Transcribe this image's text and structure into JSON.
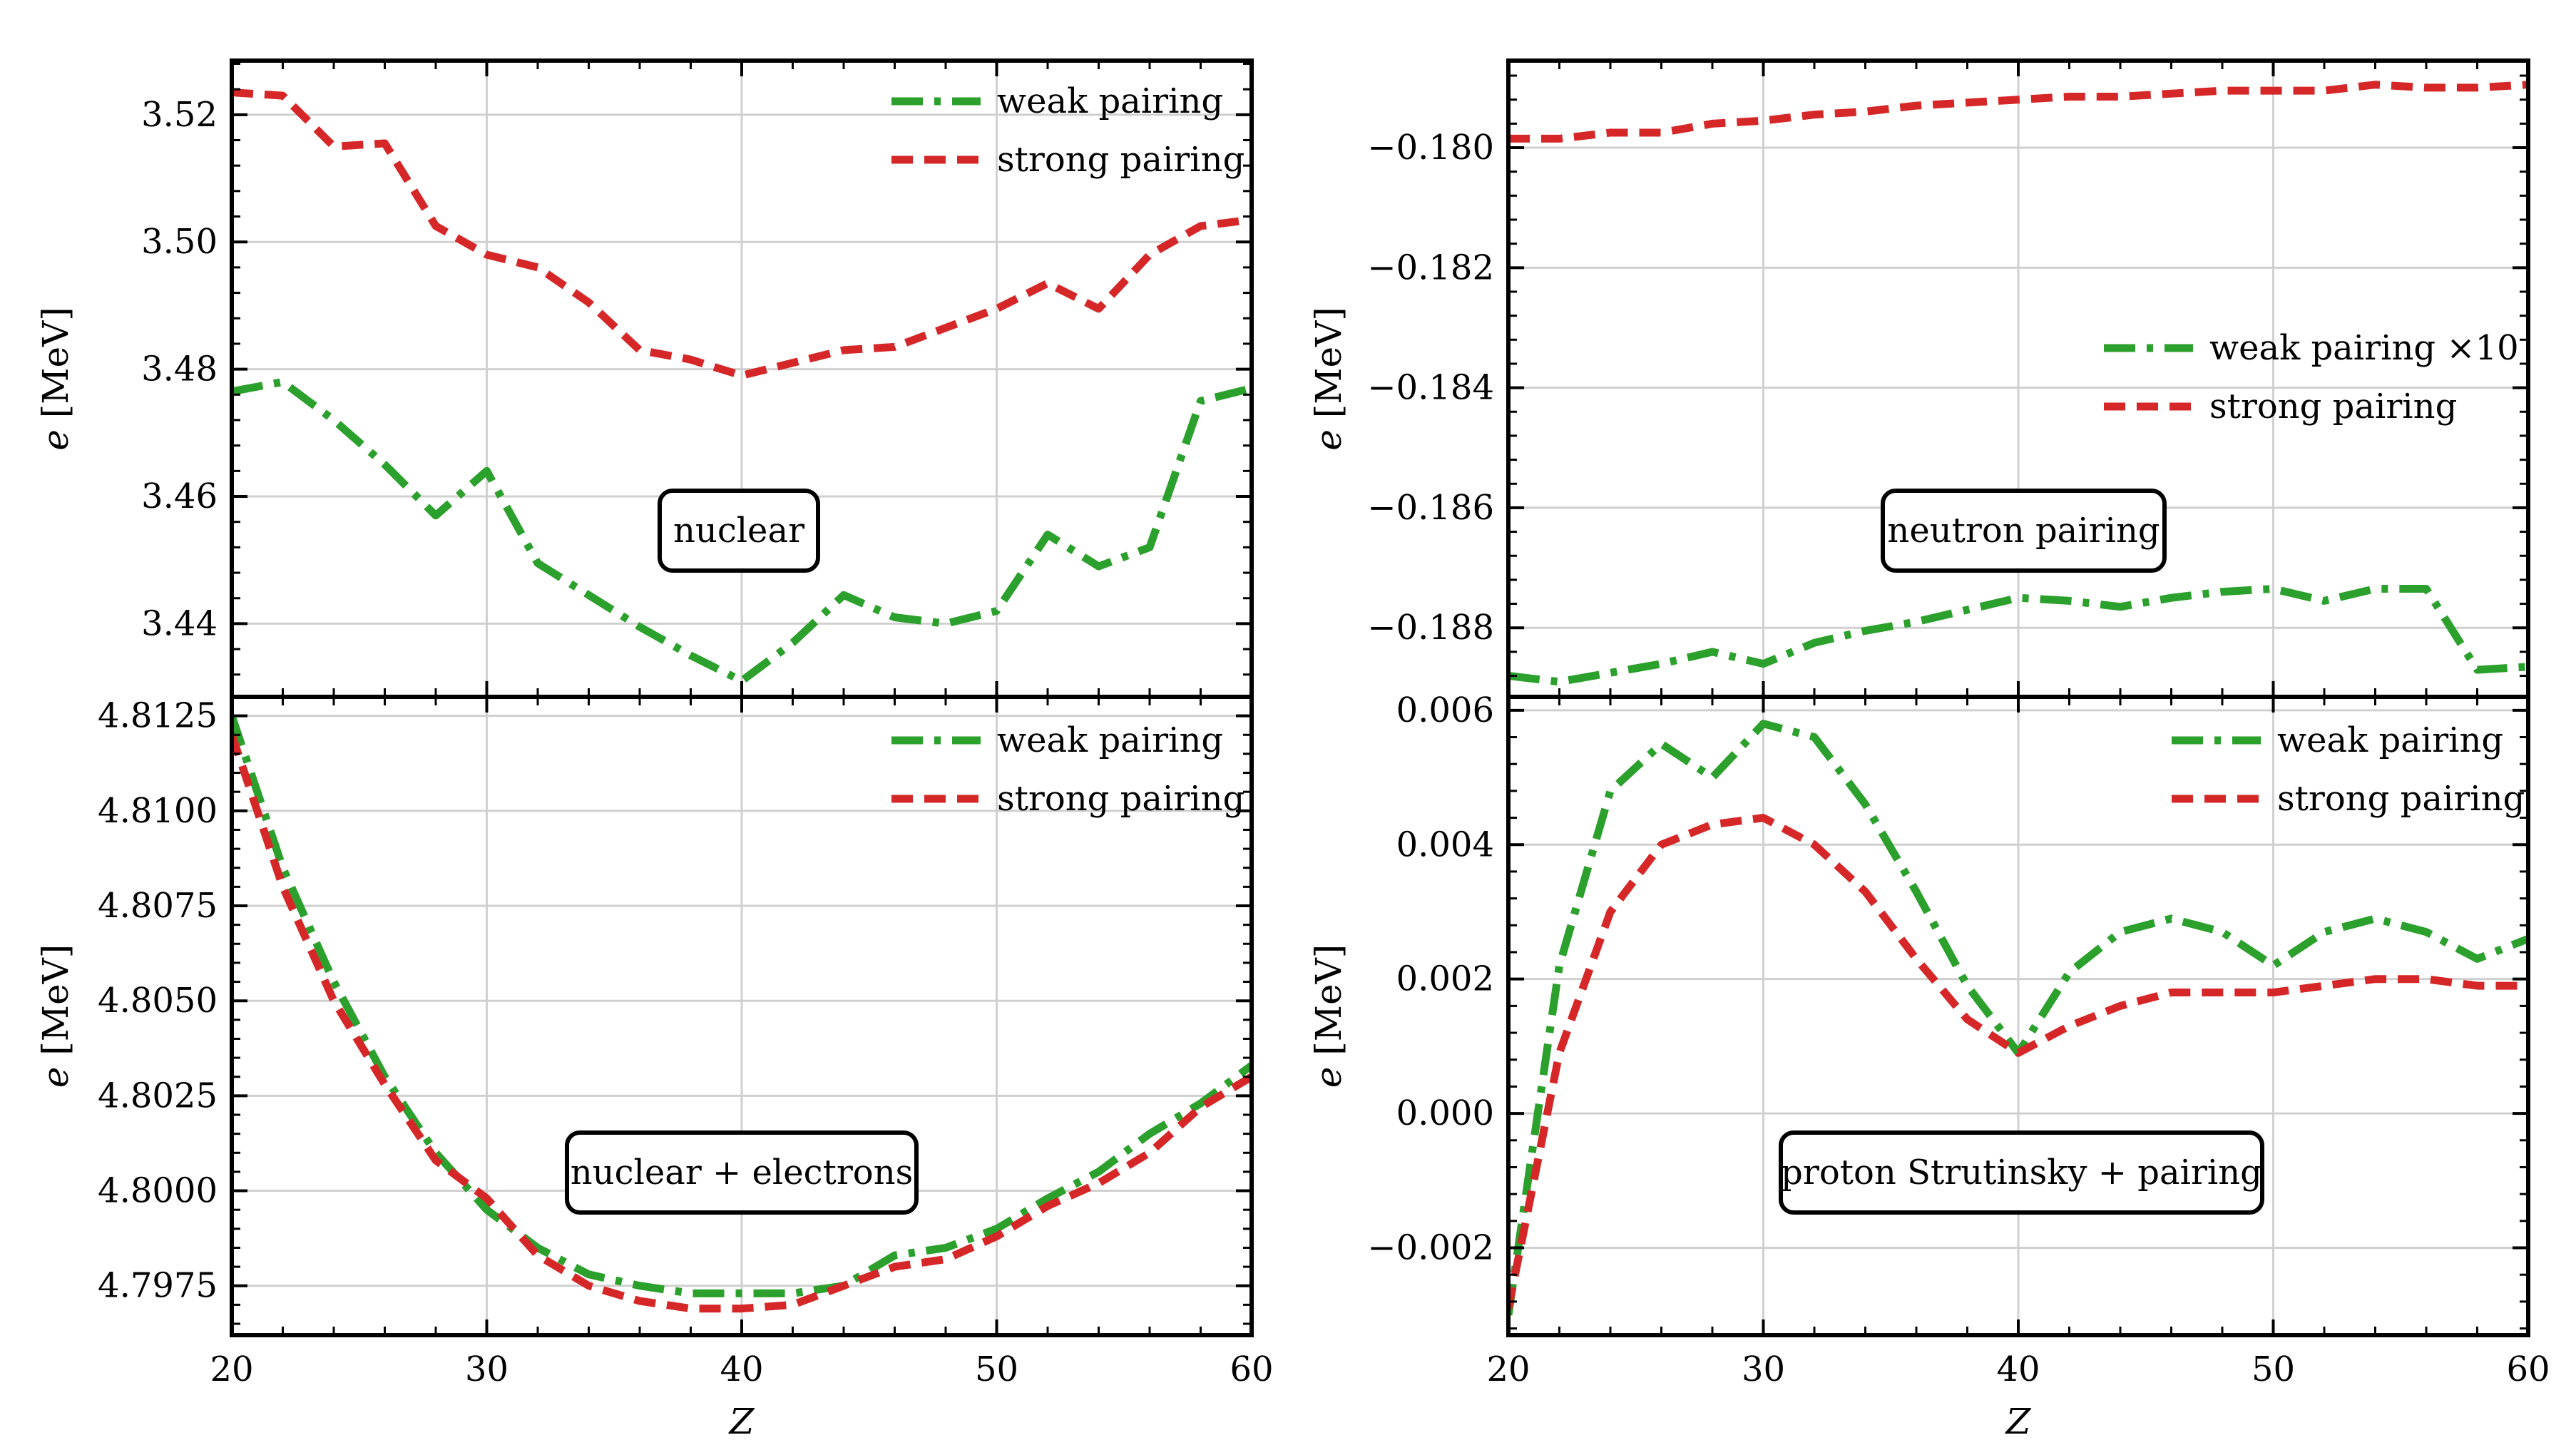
{
  "colors": {
    "weak": "#2ca02c",
    "strong": "#d62728"
  },
  "x_axis_label": "Z",
  "y_axis_label_italic": "e",
  "y_axis_label_unit": "[MeV]",
  "chart_data": [
    {
      "id": "nuclear",
      "type": "line",
      "annotation": "nuclear",
      "ylabel": "e [MeV]",
      "xlabel": "",
      "xlim": [
        20,
        60
      ],
      "ylim": [
        3.4285,
        3.5285
      ],
      "xticks": [
        20,
        30,
        40,
        50,
        60
      ],
      "show_xtick_labels": false,
      "yticks": [
        3.44,
        3.46,
        3.48,
        3.5,
        3.52
      ],
      "ytick_labels": [
        "3.44",
        "3.46",
        "3.48",
        "3.50",
        "3.52"
      ],
      "legend_position": "upper right",
      "x": [
        20,
        22,
        24,
        26,
        28,
        30,
        32,
        34,
        36,
        38,
        40,
        42,
        44,
        46,
        48,
        50,
        52,
        54,
        56,
        58,
        60
      ],
      "series": [
        {
          "name": "weak pairing",
          "style": "dashdot",
          "color_key": "weak",
          "values": [
            3.4765,
            3.478,
            3.472,
            3.465,
            3.457,
            3.464,
            3.4495,
            3.4445,
            3.4395,
            3.435,
            3.431,
            3.437,
            3.4445,
            3.441,
            3.44,
            3.442,
            3.454,
            3.449,
            3.452,
            3.475,
            3.477
          ]
        },
        {
          "name": "strong pairing",
          "style": "dashed",
          "color_key": "strong",
          "values": [
            3.5235,
            3.523,
            3.515,
            3.5155,
            3.5025,
            3.498,
            3.496,
            3.4905,
            3.483,
            3.4815,
            3.479,
            3.481,
            3.483,
            3.4835,
            3.4865,
            3.4895,
            3.4935,
            3.4895,
            3.498,
            3.5025,
            3.5035
          ]
        }
      ]
    },
    {
      "id": "neutron",
      "type": "line",
      "annotation": "neutron pairing",
      "ylabel": "e [MeV]",
      "xlabel": "",
      "xlim": [
        20,
        60
      ],
      "ylim": [
        -0.18915,
        -0.17855
      ],
      "xticks": [
        20,
        30,
        40,
        50,
        60
      ],
      "show_xtick_labels": false,
      "yticks": [
        -0.188,
        -0.186,
        -0.184,
        -0.182,
        -0.18
      ],
      "ytick_labels": [
        "−0.188",
        "−0.186",
        "−0.184",
        "−0.182",
        "−0.180"
      ],
      "legend_position": "center right",
      "x": [
        20,
        22,
        24,
        26,
        28,
        30,
        32,
        34,
        36,
        38,
        40,
        42,
        44,
        46,
        48,
        50,
        52,
        54,
        56,
        58,
        60
      ],
      "series": [
        {
          "name": "weak pairing ×10",
          "style": "dashdot",
          "color_key": "weak",
          "values": [
            -0.1888,
            -0.1889,
            -0.18875,
            -0.1886,
            -0.1884,
            -0.1886,
            -0.18825,
            -0.18805,
            -0.1879,
            -0.1877,
            -0.1875,
            -0.18755,
            -0.18765,
            -0.1875,
            -0.1874,
            -0.18735,
            -0.18755,
            -0.18735,
            -0.18735,
            -0.1887,
            -0.18865
          ]
        },
        {
          "name": "strong pairing",
          "style": "dashed",
          "color_key": "strong",
          "values": [
            -0.17985,
            -0.17985,
            -0.17975,
            -0.17975,
            -0.1796,
            -0.17955,
            -0.17945,
            -0.1794,
            -0.1793,
            -0.17925,
            -0.1792,
            -0.17915,
            -0.17915,
            -0.1791,
            -0.17905,
            -0.17905,
            -0.17905,
            -0.17895,
            -0.179,
            -0.179,
            -0.17895
          ]
        }
      ]
    },
    {
      "id": "nuclear_electrons",
      "type": "line",
      "annotation": "nuclear + electrons",
      "ylabel": "e [MeV]",
      "xlabel": "Z",
      "xlim": [
        20,
        60
      ],
      "ylim": [
        4.7962,
        4.813
      ],
      "xticks": [
        20,
        30,
        40,
        50,
        60
      ],
      "show_xtick_labels": true,
      "xtick_labels": [
        "20",
        "30",
        "40",
        "50",
        "60"
      ],
      "yticks": [
        4.7975,
        4.8,
        4.8025,
        4.805,
        4.8075,
        4.81,
        4.8125
      ],
      "ytick_labels": [
        "4.7975",
        "4.8000",
        "4.8025",
        "4.8050",
        "4.8075",
        "4.8100",
        "4.8125"
      ],
      "legend_position": "upper right",
      "x": [
        20,
        22,
        24,
        26,
        28,
        30,
        32,
        34,
        36,
        38,
        40,
        42,
        44,
        46,
        48,
        50,
        52,
        54,
        56,
        58,
        60
      ],
      "series": [
        {
          "name": "weak pairing",
          "style": "dashdot",
          "color_key": "weak",
          "values": [
            4.8125,
            4.8085,
            4.8055,
            4.803,
            4.801,
            4.7995,
            4.7985,
            4.7978,
            4.7975,
            4.7973,
            4.7973,
            4.7973,
            4.7975,
            4.7983,
            4.7985,
            4.799,
            4.7998,
            4.8005,
            4.8015,
            4.8023,
            4.8033
          ]
        },
        {
          "name": "strong pairing",
          "style": "dashed",
          "color_key": "strong",
          "values": [
            4.812,
            4.808,
            4.805,
            4.8028,
            4.8008,
            4.7998,
            4.7983,
            4.7975,
            4.7971,
            4.7969,
            4.7969,
            4.797,
            4.7975,
            4.798,
            4.7982,
            4.7988,
            4.7996,
            4.8002,
            4.801,
            4.8022,
            4.803
          ]
        }
      ]
    },
    {
      "id": "proton",
      "type": "line",
      "annotation": "proton Strutinsky + pairing",
      "ylabel": "e [MeV]",
      "xlabel": "Z",
      "xlim": [
        20,
        60
      ],
      "ylim": [
        -0.0033,
        0.0062
      ],
      "xticks": [
        20,
        30,
        40,
        50,
        60
      ],
      "show_xtick_labels": true,
      "xtick_labels": [
        "20",
        "30",
        "40",
        "50",
        "60"
      ],
      "yticks": [
        -0.002,
        0.0,
        0.002,
        0.004,
        0.006
      ],
      "ytick_labels": [
        "−0.002",
        "0.000",
        "0.002",
        "0.004",
        "0.006"
      ],
      "legend_position": "upper right",
      "x": [
        20,
        22,
        24,
        26,
        28,
        30,
        32,
        34,
        36,
        38,
        40,
        42,
        44,
        46,
        48,
        50,
        52,
        54,
        56,
        58,
        60
      ],
      "series": [
        {
          "name": "weak pairing",
          "style": "dashdot",
          "color_key": "weak",
          "values": [
            -0.003,
            0.0022,
            0.0048,
            0.0055,
            0.005,
            0.0058,
            0.0056,
            0.0046,
            0.0033,
            0.0019,
            0.0009,
            0.0021,
            0.0027,
            0.0029,
            0.0027,
            0.0022,
            0.0027,
            0.0029,
            0.0027,
            0.0023,
            0.0026
          ]
        },
        {
          "name": "strong pairing",
          "style": "dashed",
          "color_key": "strong",
          "values": [
            -0.0029,
            0.0009,
            0.003,
            0.004,
            0.0043,
            0.0044,
            0.004,
            0.0033,
            0.0023,
            0.0014,
            0.0009,
            0.0013,
            0.0016,
            0.0018,
            0.0018,
            0.0018,
            0.0019,
            0.002,
            0.002,
            0.0019,
            0.0019
          ]
        }
      ]
    }
  ]
}
